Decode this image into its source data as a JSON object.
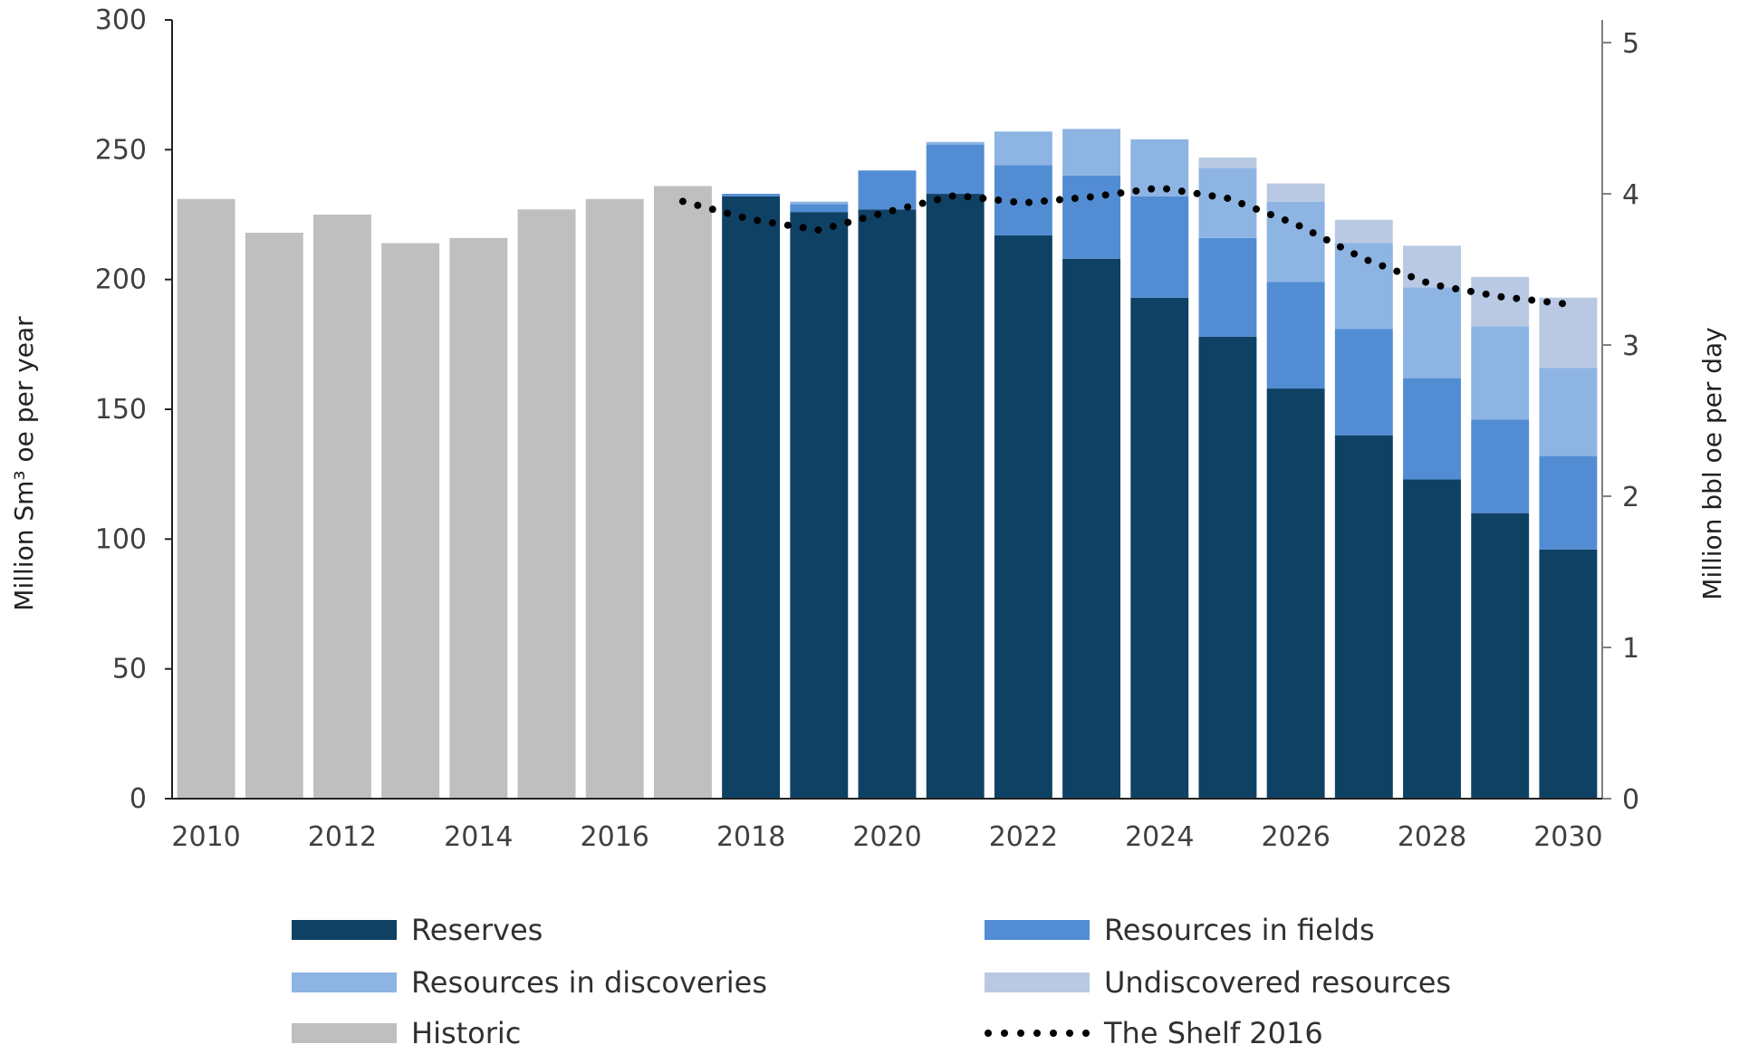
{
  "chart_data": {
    "type": "bar",
    "stacked": true,
    "categories": [
      "2010",
      "2011",
      "2012",
      "2013",
      "2014",
      "2015",
      "2016",
      "2017",
      "2018",
      "2019",
      "2020",
      "2021",
      "2022",
      "2023",
      "2024",
      "2025",
      "2026",
      "2027",
      "2028",
      "2029",
      "2030"
    ],
    "x_tick_labels": [
      "2010",
      "2012",
      "2014",
      "2016",
      "2018",
      "2020",
      "2022",
      "2024",
      "2026",
      "2028",
      "2030"
    ],
    "ylabel": "Million Sm³ oe per year",
    "ylim": [
      0,
      300
    ],
    "y_ticks": [
      0,
      50,
      100,
      150,
      200,
      250,
      300
    ],
    "y2label": "Million bbl oe per day",
    "y2lim": [
      0,
      5.15
    ],
    "y2_ticks": [
      0,
      1,
      2,
      3,
      4,
      5
    ],
    "grid": false,
    "legend_position": "bottom",
    "series": [
      {
        "name": "Historic",
        "color": "#bfbfbf",
        "values": [
          231,
          218,
          225,
          214,
          216,
          227,
          231,
          236,
          0,
          0,
          0,
          0,
          0,
          0,
          0,
          0,
          0,
          0,
          0,
          0,
          0
        ]
      },
      {
        "name": "Reserves",
        "color": "#0f4165",
        "values": [
          0,
          0,
          0,
          0,
          0,
          0,
          0,
          0,
          232,
          226,
          227,
          233,
          217,
          208,
          193,
          178,
          158,
          140,
          123,
          110,
          96
        ]
      },
      {
        "name": "Resources in fields",
        "color": "#528dd4",
        "values": [
          0,
          0,
          0,
          0,
          0,
          0,
          0,
          0,
          1,
          3,
          15,
          19,
          27,
          32,
          39,
          38,
          41,
          41,
          39,
          36,
          36
        ]
      },
      {
        "name": "Resources in discoveries",
        "color": "#8db4e3",
        "values": [
          0,
          0,
          0,
          0,
          0,
          0,
          0,
          0,
          0,
          1,
          0,
          1,
          13,
          18,
          22,
          27,
          31,
          33,
          35,
          36,
          34
        ]
      },
      {
        "name": "Undiscovered resources",
        "color": "#b9c9e3",
        "values": [
          0,
          0,
          0,
          0,
          0,
          0,
          0,
          0,
          0,
          0,
          0,
          0,
          0,
          0,
          0,
          4,
          7,
          9,
          16,
          19,
          27
        ]
      }
    ],
    "line_series": {
      "name": "The Shelf 2016",
      "axis": "right",
      "style": "dotted",
      "color": "#000000",
      "x": [
        "2017",
        "2018",
        "2019",
        "2020",
        "2021",
        "2022",
        "2023",
        "2024",
        "2025",
        "2026",
        "2027",
        "2028",
        "2029",
        "2030"
      ],
      "values": [
        3.95,
        3.83,
        3.76,
        3.88,
        3.99,
        3.94,
        3.98,
        4.04,
        3.97,
        3.8,
        3.57,
        3.4,
        3.32,
        3.27
      ]
    },
    "legend": [
      {
        "label": "Reserves",
        "color": "#0f4165",
        "kind": "bar"
      },
      {
        "label": "Resources in fields",
        "color": "#528dd4",
        "kind": "bar"
      },
      {
        "label": "Resources in discoveries",
        "color": "#8db4e3",
        "kind": "bar"
      },
      {
        "label": "Undiscovered resources",
        "color": "#b9c9e3",
        "kind": "bar"
      },
      {
        "label": "Historic",
        "color": "#bfbfbf",
        "kind": "bar"
      },
      {
        "label": "The Shelf 2016",
        "color": "#000000",
        "kind": "dotted-line"
      }
    ]
  }
}
